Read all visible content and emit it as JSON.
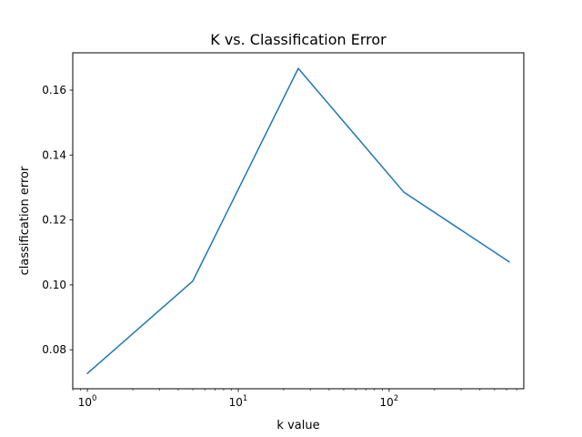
{
  "chart_data": {
    "type": "line",
    "title": "K vs. Classification Error",
    "xlabel": "k value",
    "ylabel": "classification error",
    "xscale": "log",
    "xlim": [
      0.8,
      781
    ],
    "ylim": [
      0.068,
      0.1715
    ],
    "grid": false,
    "legend": "none",
    "x_ticks": [
      {
        "value": 1,
        "base": "10",
        "exp": "0"
      },
      {
        "value": 10,
        "base": "10",
        "exp": "1"
      },
      {
        "value": 100,
        "base": "10",
        "exp": "2"
      }
    ],
    "y_ticks": [
      {
        "value": 0.08,
        "label": "0.08"
      },
      {
        "value": 0.1,
        "label": "0.10"
      },
      {
        "value": 0.12,
        "label": "0.12"
      },
      {
        "value": 0.14,
        "label": "0.14"
      },
      {
        "value": 0.16,
        "label": "0.16"
      }
    ],
    "series": [
      {
        "color": "#1f77b4",
        "x": [
          1,
          5,
          25,
          125,
          625
        ],
        "y": [
          0.0727,
          0.1012,
          0.1667,
          0.1286,
          0.1071
        ]
      }
    ]
  }
}
